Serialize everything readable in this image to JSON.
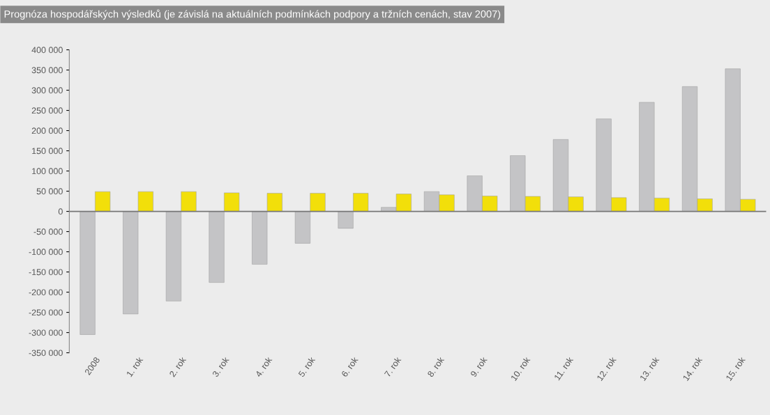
{
  "chart_data": {
    "type": "bar",
    "title": "Prognóza hospodářských výsledků (je závislá na aktuálních podmínkách podpory a tržních cenách, stav 2007)",
    "categories": [
      "2008",
      "1. rok",
      "2. rok",
      "3. rok",
      "4. rok",
      "5. rok",
      "6. rok",
      "7. rok",
      "8. rok",
      "9. rok",
      "10. rok",
      "11. rok",
      "12. rok",
      "13. rok",
      "14. rok",
      "15. rok"
    ],
    "series": [
      {
        "color": "#c4c4c6",
        "values": [
          -305000,
          -254000,
          -222000,
          -176000,
          -131000,
          -79000,
          -42000,
          10000,
          49000,
          88000,
          138000,
          178000,
          229000,
          270000,
          309000,
          353000
        ]
      },
      {
        "color": "#f2df0a",
        "values": [
          49000,
          49000,
          49000,
          46000,
          45000,
          45000,
          45000,
          43000,
          41000,
          38000,
          37000,
          36000,
          34000,
          33000,
          31000,
          30000
        ]
      }
    ],
    "ylim": [
      -350000,
      400000
    ],
    "yticks": [
      {
        "value": -350000,
        "label": "-350 000"
      },
      {
        "value": -300000,
        "label": "-300 000"
      },
      {
        "value": -250000,
        "label": "-250 000"
      },
      {
        "value": -200000,
        "label": "-200 000"
      },
      {
        "value": -150000,
        "label": "-150 000"
      },
      {
        "value": -100000,
        "label": "-100 000"
      },
      {
        "value": -50000,
        "label": "-50 000"
      },
      0,
      {
        "value": 50000,
        "label": "50 000"
      },
      {
        "value": 100000,
        "label": "100 000"
      },
      {
        "value": 150000,
        "label": "150 000"
      },
      {
        "value": 200000,
        "label": "200 000"
      },
      {
        "value": 250000,
        "label": "250 000"
      },
      {
        "value": 300000,
        "label": "300 000"
      },
      {
        "value": 350000,
        "label": "350 000"
      },
      {
        "value": 400000,
        "label": "400 000"
      }
    ]
  }
}
